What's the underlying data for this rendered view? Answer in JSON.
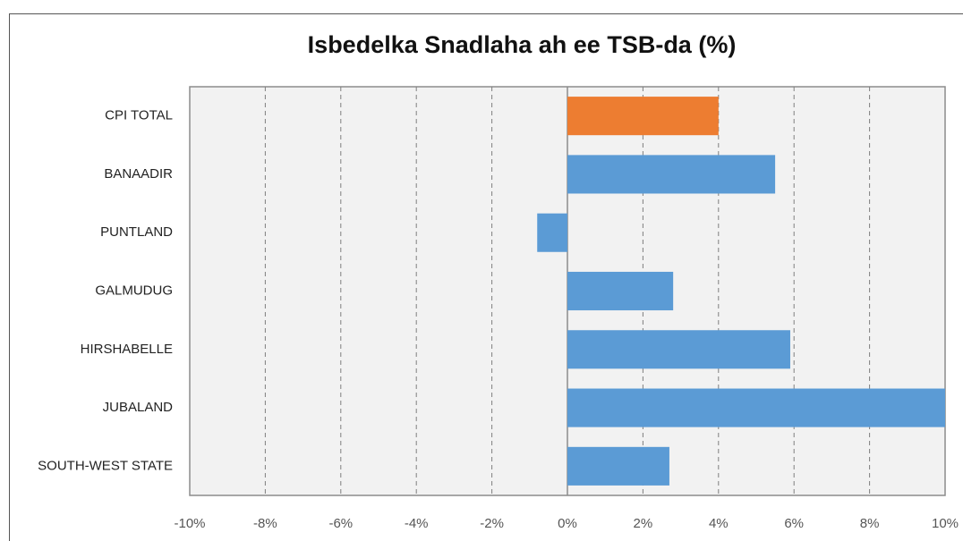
{
  "chart_data": {
    "type": "hbar",
    "title": "Isbedelka Snadlaha ah ee TSB-da (%)",
    "categories": [
      "CPI TOTAL",
      "BANAADIR",
      "PUNTLAND",
      "GALMUDUG",
      "HIRSHABELLE",
      "JUBALAND",
      "SOUTH-WEST STATE"
    ],
    "values": [
      4.0,
      5.5,
      -0.8,
      2.8,
      5.9,
      10.0,
      2.7
    ],
    "colors": [
      "#ed7d31",
      "#5b9bd5",
      "#5b9bd5",
      "#5b9bd5",
      "#5b9bd5",
      "#5b9bd5",
      "#5b9bd5"
    ],
    "xlim": [
      -10,
      10
    ],
    "xticks": [
      {
        "value": -10,
        "label": "-10%"
      },
      {
        "value": -8,
        "label": "-8%"
      },
      {
        "value": -6,
        "label": "-6%"
      },
      {
        "value": -4,
        "label": "-4%"
      },
      {
        "value": -2,
        "label": "-2%"
      },
      {
        "value": 0,
        "label": "0%"
      },
      {
        "value": 2,
        "label": "2%"
      },
      {
        "value": 4,
        "label": "4%"
      },
      {
        "value": 6,
        "label": "6%"
      },
      {
        "value": 8,
        "label": "8%"
      },
      {
        "value": 10,
        "label": "10%"
      }
    ],
    "grid": true
  }
}
